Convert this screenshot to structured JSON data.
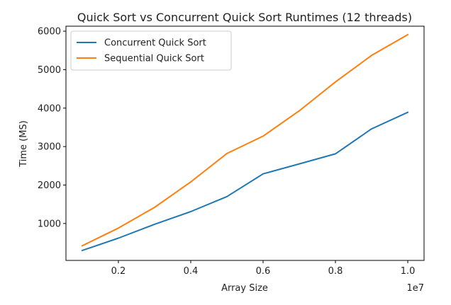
{
  "chart_data": {
    "type": "line",
    "title": "Quick Sort vs Concurrent Quick Sort Runtimes (12 threads)",
    "xlabel": "Array Size",
    "ylabel": "Time (MS)",
    "x_offset_label": "1e7",
    "x": [
      1000000,
      2000000,
      3000000,
      4000000,
      5000000,
      6000000,
      7000000,
      8000000,
      9000000,
      10000000
    ],
    "xlim": [
      550000,
      10450000
    ],
    "ylim": [
      40,
      6130
    ],
    "x_ticks": [
      2000000,
      4000000,
      6000000,
      8000000,
      10000000
    ],
    "x_tick_labels": [
      "0.2",
      "0.4",
      "0.6",
      "0.8",
      "1.0"
    ],
    "y_ticks": [
      1000,
      2000,
      3000,
      4000,
      5000,
      6000
    ],
    "y_tick_labels": [
      "1000",
      "2000",
      "3000",
      "4000",
      "5000",
      "6000"
    ],
    "legend_position": "top-left",
    "grid": false,
    "series": [
      {
        "name": "Concurrent Quick Sort",
        "color": "#1f77b4",
        "values": [
          300,
          620,
          980,
          1310,
          1700,
          2290,
          2550,
          2810,
          3460,
          3890
        ]
      },
      {
        "name": "Sequential Quick Sort",
        "color": "#ff7f0e",
        "values": [
          420,
          880,
          1420,
          2080,
          2820,
          3270,
          3930,
          4680,
          5370,
          5910
        ]
      }
    ]
  }
}
